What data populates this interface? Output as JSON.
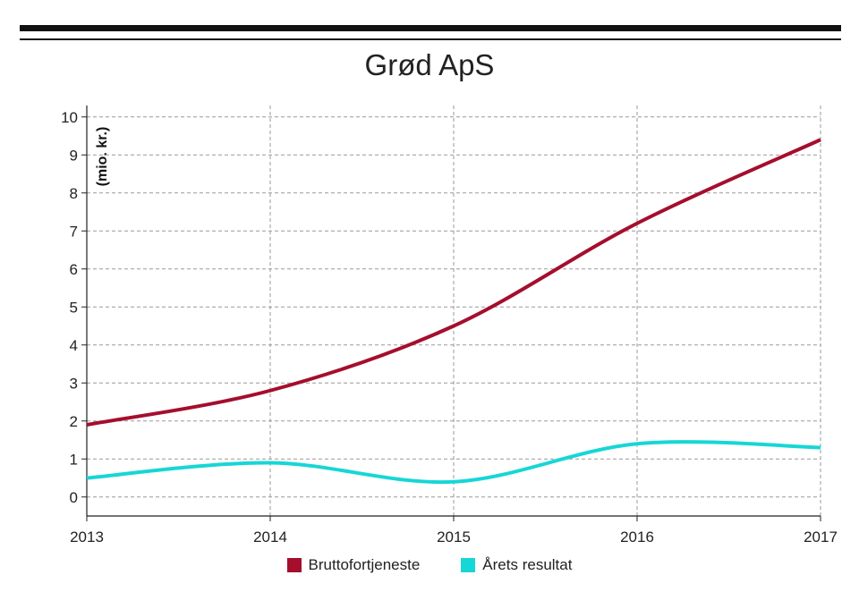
{
  "chart_data": {
    "type": "line",
    "title": "Grød ApS",
    "ylabel": "(mio. kr.)",
    "xlabel": "",
    "x": [
      "2013",
      "2014",
      "2015",
      "2016",
      "2017"
    ],
    "ylim": [
      -0.5,
      10.3
    ],
    "yticks": [
      0,
      1,
      2,
      3,
      4,
      5,
      6,
      7,
      8,
      9,
      10
    ],
    "grid": true,
    "legend_position": "bottom",
    "series": [
      {
        "name": "Bruttofortjeneste",
        "color": "#a50e2d",
        "values": [
          1.9,
          2.8,
          4.5,
          7.2,
          9.4
        ]
      },
      {
        "name": "Årets resultat",
        "color": "#17d6d6",
        "values": [
          0.5,
          0.9,
          0.4,
          1.4,
          1.3
        ]
      }
    ]
  }
}
